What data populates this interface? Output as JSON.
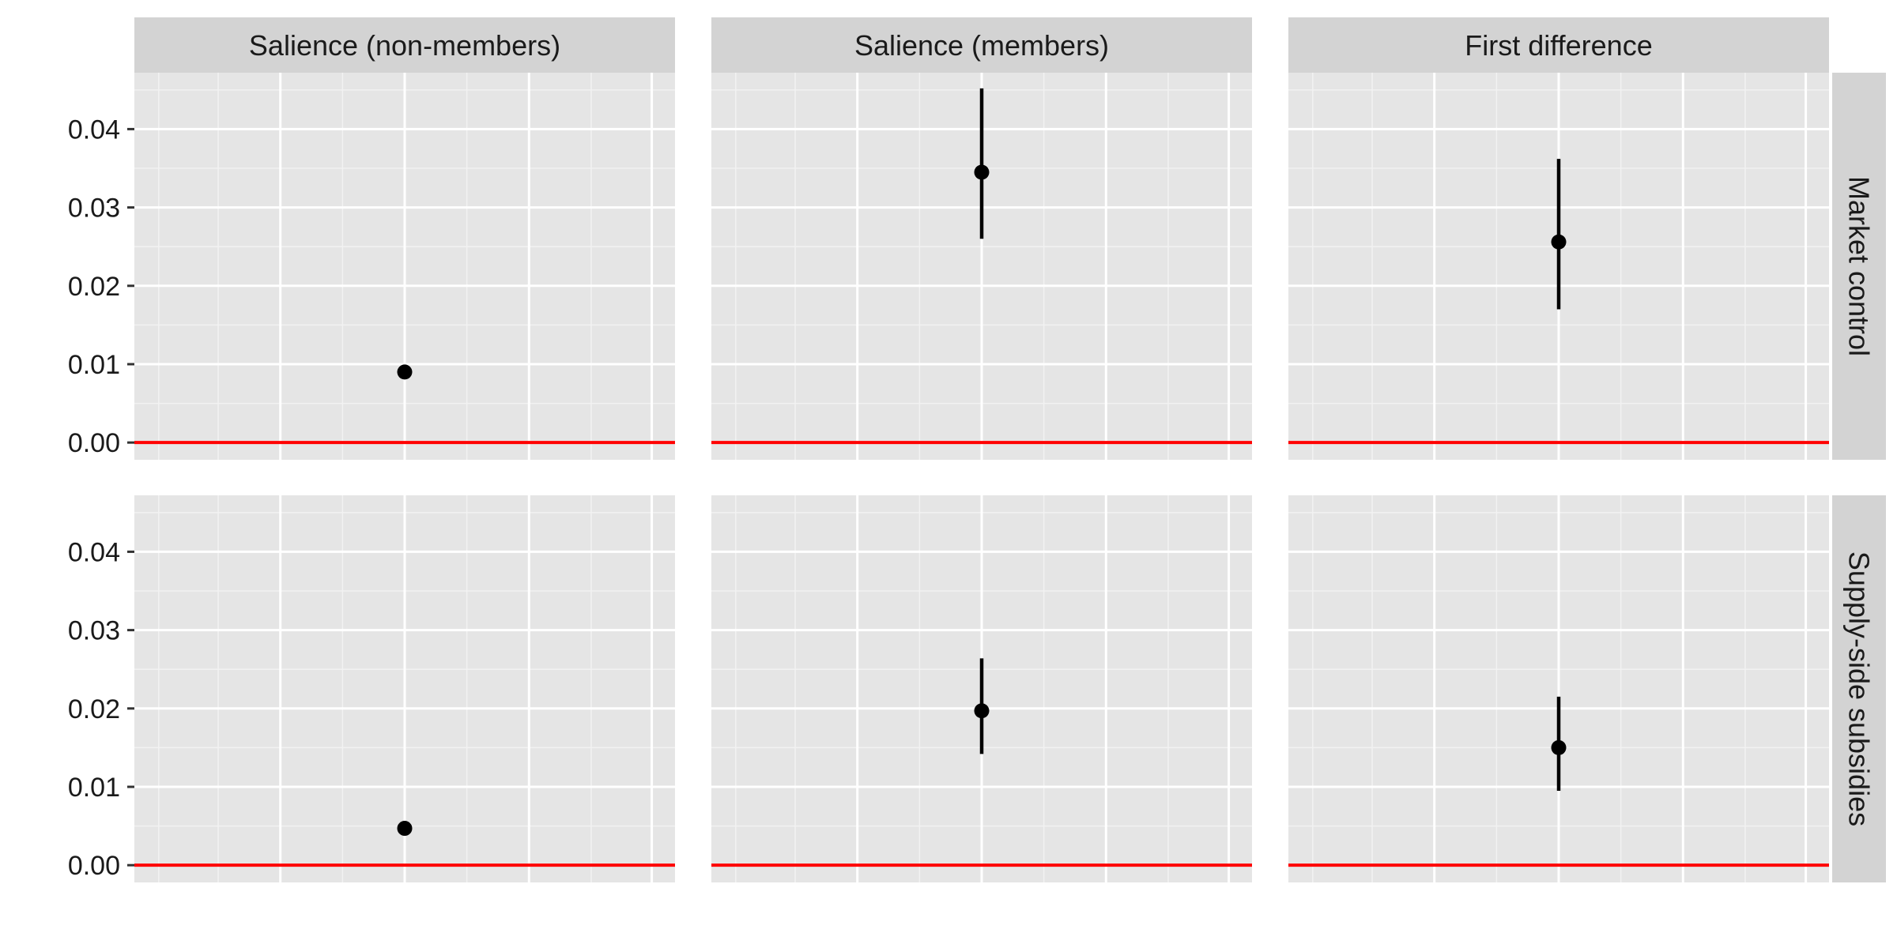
{
  "chart_data": {
    "type": "scatter",
    "subtype": "point-range facet grid",
    "columns": [
      "Salience (non-members)",
      "Salience (members)",
      "First difference"
    ],
    "rows": [
      "Market control",
      "Supply-side subsidies"
    ],
    "y_ticks": [
      "0.00",
      "0.01",
      "0.02",
      "0.03",
      "0.04"
    ],
    "ylim": [
      -0.0022,
      0.0472
    ],
    "x_ticks_shown": false,
    "grid": true,
    "panel_background": "#e5e5e5",
    "strip_background": "#d3d3d3",
    "reference_line": {
      "y": 0,
      "color": "#ff0000"
    },
    "point_color": "#000000",
    "panels": [
      {
        "row": "Market control",
        "column": "Salience (non-members)",
        "estimate": 0.009,
        "lower": null,
        "upper": null
      },
      {
        "row": "Market control",
        "column": "Salience (members)",
        "estimate": 0.0345,
        "lower": 0.026,
        "upper": 0.0452
      },
      {
        "row": "Market control",
        "column": "First difference",
        "estimate": 0.0256,
        "lower": 0.017,
        "upper": 0.0362
      },
      {
        "row": "Supply-side subsidies",
        "column": "Salience (non-members)",
        "estimate": 0.0047,
        "lower": null,
        "upper": null
      },
      {
        "row": "Supply-side subsidies",
        "column": "Salience (members)",
        "estimate": 0.0197,
        "lower": 0.0142,
        "upper": 0.0264
      },
      {
        "row": "Supply-side subsidies",
        "column": "First difference",
        "estimate": 0.015,
        "lower": 0.0095,
        "upper": 0.0215
      }
    ]
  }
}
